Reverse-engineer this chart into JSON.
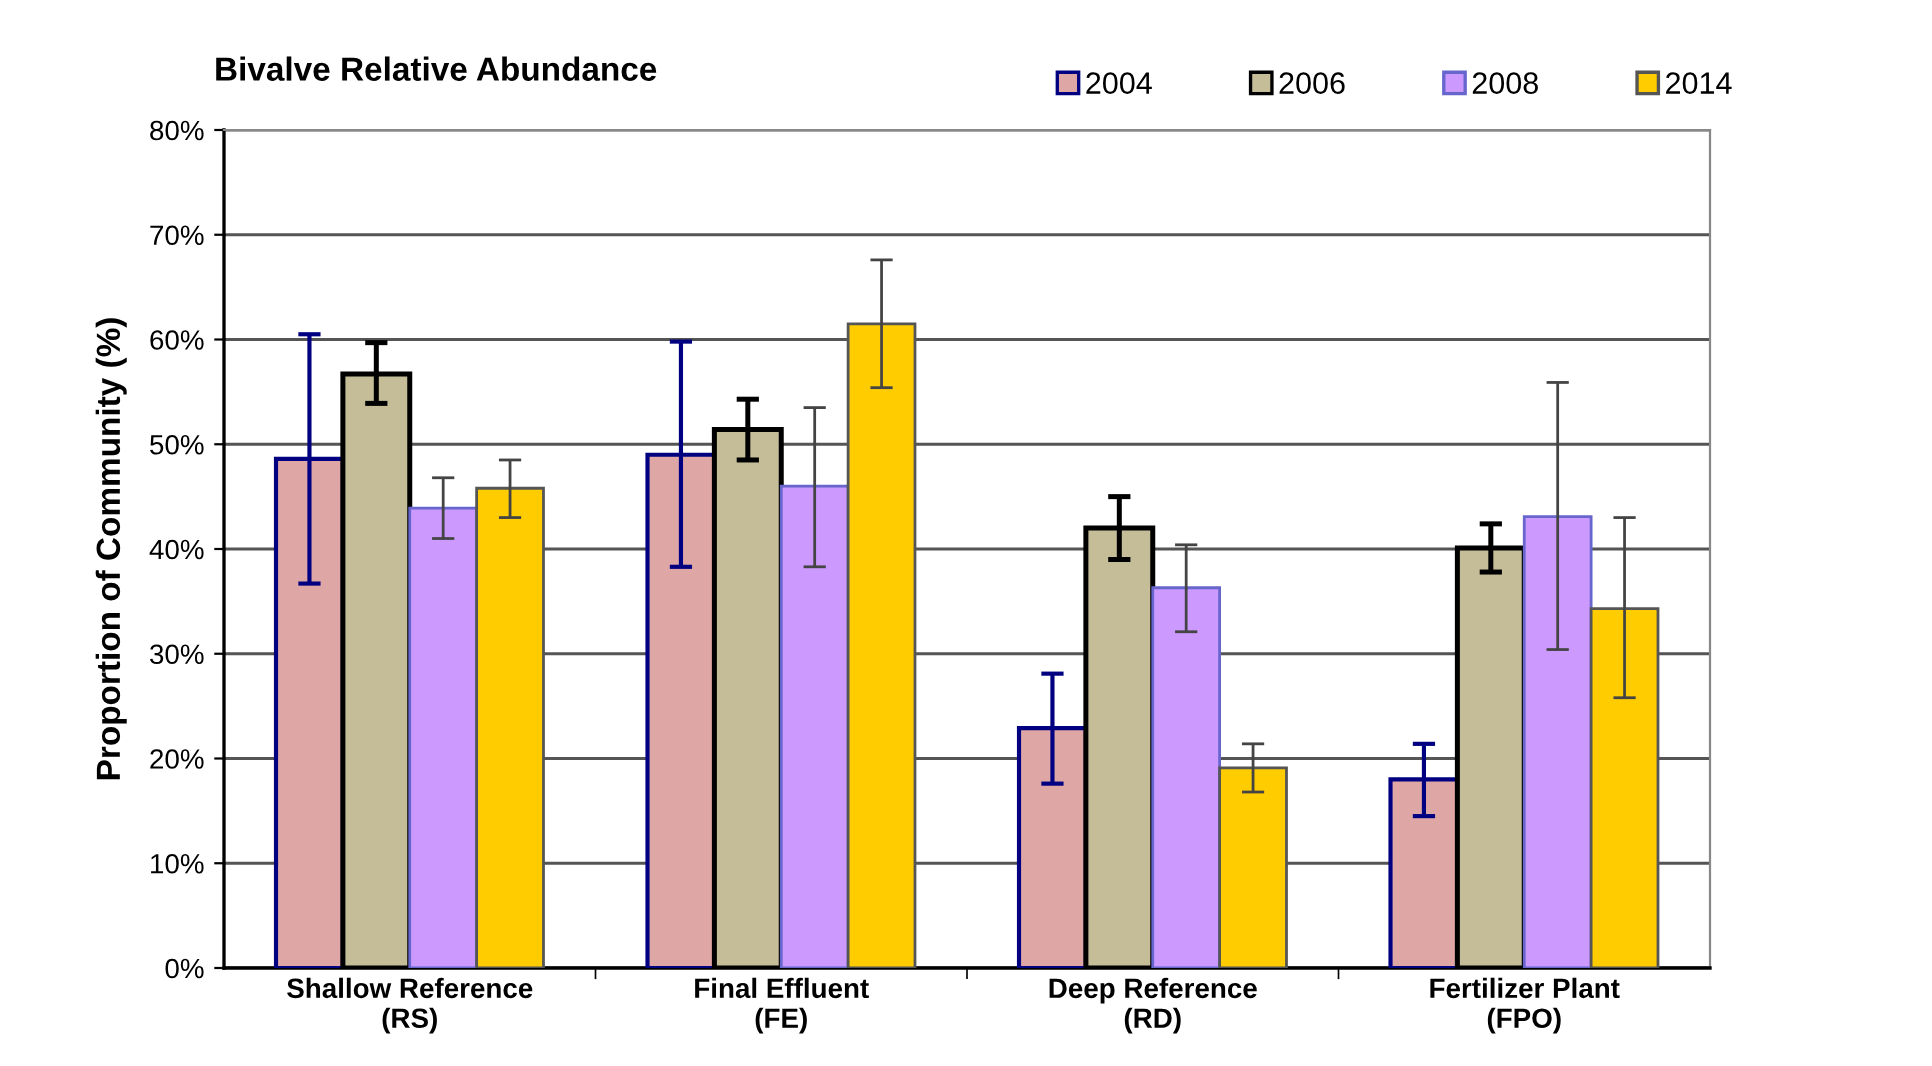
{
  "chart_data": {
    "type": "bar",
    "title": "Bivalve Relative Abundance",
    "ylabel": "Proportion of Community (%)",
    "categories": [
      "Shallow Reference\n(RS)",
      "Final Effluent\n(FE)",
      "Deep Reference\n(RD)",
      "Fertilizer Plant\n(FPO)"
    ],
    "series": [
      {
        "name": "2004",
        "color": "#dfa6a6",
        "values": [
          48.6,
          49.0,
          22.9,
          18.0
        ],
        "errors": [
          [
            36.7,
            60.5
          ],
          [
            38.3,
            59.8
          ],
          [
            17.6,
            28.1
          ],
          [
            14.5,
            21.4
          ]
        ]
      },
      {
        "name": "2006",
        "color": "#c5bd98",
        "values": [
          56.7,
          51.4,
          42.0,
          40.1
        ],
        "errors": [
          [
            53.9,
            59.7
          ],
          [
            48.5,
            54.3
          ],
          [
            39.0,
            45.0
          ],
          [
            37.8,
            42.4
          ]
        ]
      },
      {
        "name": "2008",
        "color": "#cc99ff",
        "values": [
          43.9,
          46.0,
          36.3,
          43.1
        ],
        "errors": [
          [
            41.0,
            46.8
          ],
          [
            38.3,
            53.5
          ],
          [
            32.1,
            40.4
          ],
          [
            30.4,
            55.9
          ]
        ]
      },
      {
        "name": "2014",
        "color": "#ffcc00",
        "values": [
          45.8,
          61.5,
          19.1,
          34.3
        ],
        "errors": [
          [
            43.0,
            48.5
          ],
          [
            55.4,
            67.6
          ],
          [
            16.8,
            21.4
          ],
          [
            25.8,
            43.0
          ]
        ]
      }
    ],
    "ylim": [
      0,
      80
    ],
    "yticks": [
      {
        "value": 0,
        "label": "0%"
      },
      {
        "value": 10,
        "label": "10%"
      },
      {
        "value": 20,
        "label": "20%"
      },
      {
        "value": 30,
        "label": "30%"
      },
      {
        "value": 40,
        "label": "40%"
      },
      {
        "value": 50,
        "label": "50%"
      },
      {
        "value": 60,
        "label": "60%"
      },
      {
        "value": 70,
        "label": "70%"
      },
      {
        "value": 80,
        "label": "80%"
      }
    ],
    "grid": "y",
    "legend": "top right"
  }
}
